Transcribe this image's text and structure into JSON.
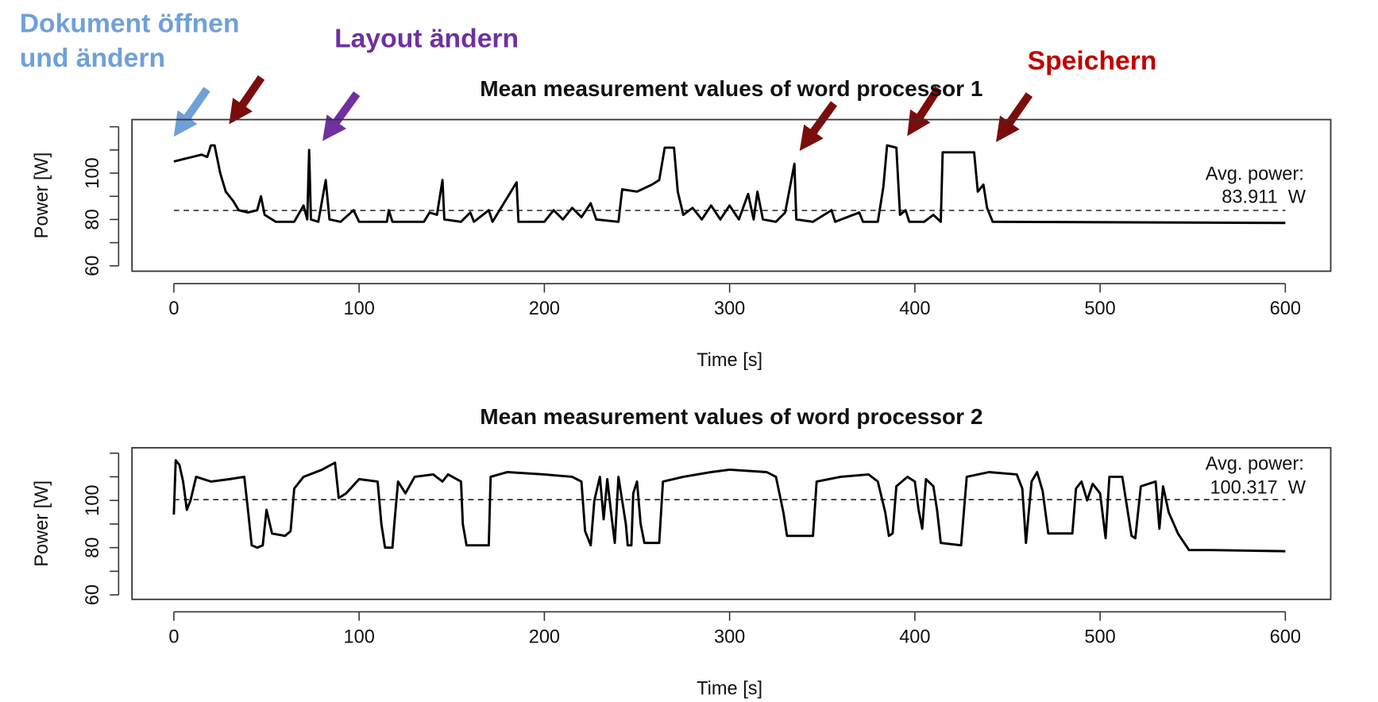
{
  "annotations": [
    {
      "lines": [
        "Dokument öffnen",
        "und ändern"
      ],
      "color": "#6fa0d8"
    },
    {
      "lines": [
        "Layout ändern"
      ],
      "color": "#7030a0"
    },
    {
      "lines": [
        "Speichern"
      ],
      "color": "#c00000"
    }
  ],
  "chart_data": [
    {
      "type": "line",
      "title": "Mean measurement values of word processor 1",
      "x_label": "Time [s]",
      "y_label": "Power [W]",
      "xlim": [
        -22.6,
        624.5
      ],
      "xticks": [
        0,
        100,
        200,
        300,
        400,
        500,
        600
      ],
      "ylim": [
        57.7,
        123.1
      ],
      "yticks": [
        60,
        80,
        100
      ],
      "yminorticks": [
        70,
        90,
        110,
        120
      ],
      "avg": 83.911,
      "avg_title": "Avg. power:",
      "avg_label": "83.911  W",
      "color": "#000000",
      "x": [
        0,
        5,
        10,
        15,
        18,
        20,
        22,
        25,
        28,
        32,
        35,
        40,
        45,
        47,
        49,
        55,
        65,
        70,
        72,
        73,
        74,
        78,
        82,
        84,
        90,
        97,
        100,
        115,
        116,
        118,
        135,
        138,
        142,
        145,
        146,
        155,
        160,
        162,
        170,
        172,
        185,
        186,
        200,
        205,
        210,
        215,
        220,
        225,
        228,
        240,
        242,
        250,
        258,
        262,
        265,
        270,
        272,
        275,
        280,
        285,
        290,
        295,
        300,
        305,
        310,
        313,
        315,
        318,
        325,
        330,
        335,
        336,
        345,
        355,
        357,
        370,
        372,
        380,
        383,
        385,
        390,
        392,
        395,
        397,
        405,
        410,
        414,
        415,
        432,
        434,
        437,
        439,
        442,
        600
      ],
      "values": [
        105,
        106,
        107,
        108,
        107,
        112,
        112,
        100,
        92,
        88,
        84,
        83,
        84,
        90,
        82,
        79,
        79,
        86,
        80,
        110,
        80,
        79,
        97,
        80,
        79,
        84,
        79,
        79,
        84,
        79,
        79,
        83,
        82,
        97,
        80,
        79,
        83,
        79,
        84,
        79,
        96,
        79,
        79,
        84,
        80,
        85,
        81,
        87,
        80,
        79,
        93,
        92,
        95,
        97,
        111,
        111,
        92,
        82,
        85,
        80,
        86,
        80,
        86,
        80,
        91,
        80,
        92,
        80,
        79,
        83,
        104,
        80,
        79,
        84,
        79,
        83,
        79,
        79,
        94,
        112,
        111,
        82,
        84,
        79,
        79,
        82,
        79,
        109,
        109,
        92,
        95,
        85,
        79,
        78.5
      ]
    },
    {
      "type": "line",
      "title": "Mean measurement values of word processor 2",
      "x_label": "Time [s]",
      "y_label": "Power [W]",
      "xlim": [
        -22.6,
        624.5
      ],
      "xticks": [
        0,
        100,
        200,
        300,
        400,
        500,
        600
      ],
      "ylim": [
        58.1,
        122.3
      ],
      "yticks": [
        60,
        80,
        100
      ],
      "yminorticks": [
        70,
        90,
        110,
        120
      ],
      "avg": 100.317,
      "avg_title": "Avg. power:",
      "avg_label": "100.317  W",
      "color": "#000000",
      "x": [
        0,
        1,
        3,
        5,
        7,
        9,
        12,
        20,
        30,
        38,
        40,
        42,
        45,
        48,
        50,
        53,
        60,
        63,
        65,
        70,
        80,
        87,
        89,
        93,
        100,
        110,
        112,
        114,
        118,
        119,
        121,
        125,
        130,
        140,
        145,
        148,
        155,
        156,
        158,
        170,
        171,
        180,
        200,
        215,
        220,
        222,
        225,
        227,
        230,
        232,
        234,
        236,
        238,
        240,
        244,
        245,
        247,
        248,
        250,
        252,
        254,
        262,
        264,
        275,
        290,
        300,
        320,
        325,
        329,
        331,
        345,
        347,
        360,
        375,
        380,
        384,
        386,
        388,
        390,
        396,
        400,
        402,
        404,
        406,
        410,
        412,
        414,
        425,
        428,
        440,
        455,
        458,
        460,
        463,
        466,
        469,
        472,
        485,
        487,
        490,
        493,
        496,
        500,
        503,
        505,
        512,
        517,
        519,
        522,
        530,
        532,
        534,
        537,
        542,
        548,
        560,
        600
      ],
      "values": [
        94,
        117,
        115,
        108,
        96,
        100,
        110,
        108,
        109,
        110,
        96,
        81,
        80,
        81,
        96,
        86,
        85,
        87,
        105,
        110,
        113,
        116,
        101,
        103,
        109,
        108,
        90,
        80,
        80,
        90,
        108,
        103,
        110,
        111,
        108,
        111,
        108,
        90,
        81,
        81,
        110,
        112,
        111,
        110,
        108,
        87,
        81,
        100,
        110,
        92,
        109,
        95,
        82,
        110,
        90,
        81,
        81,
        103,
        108,
        90,
        82,
        82,
        108,
        110,
        112,
        113,
        112,
        110,
        95,
        85,
        85,
        108,
        110,
        111,
        108,
        95,
        85,
        86,
        106,
        110,
        108,
        96,
        88,
        109,
        106,
        96,
        82,
        81,
        110,
        112,
        111,
        105,
        82,
        108,
        112,
        104,
        86,
        86,
        105,
        108,
        100,
        107,
        103,
        84,
        110,
        110,
        85,
        84,
        106,
        108,
        88,
        106,
        95,
        86,
        79,
        79,
        78.5
      ]
    }
  ]
}
